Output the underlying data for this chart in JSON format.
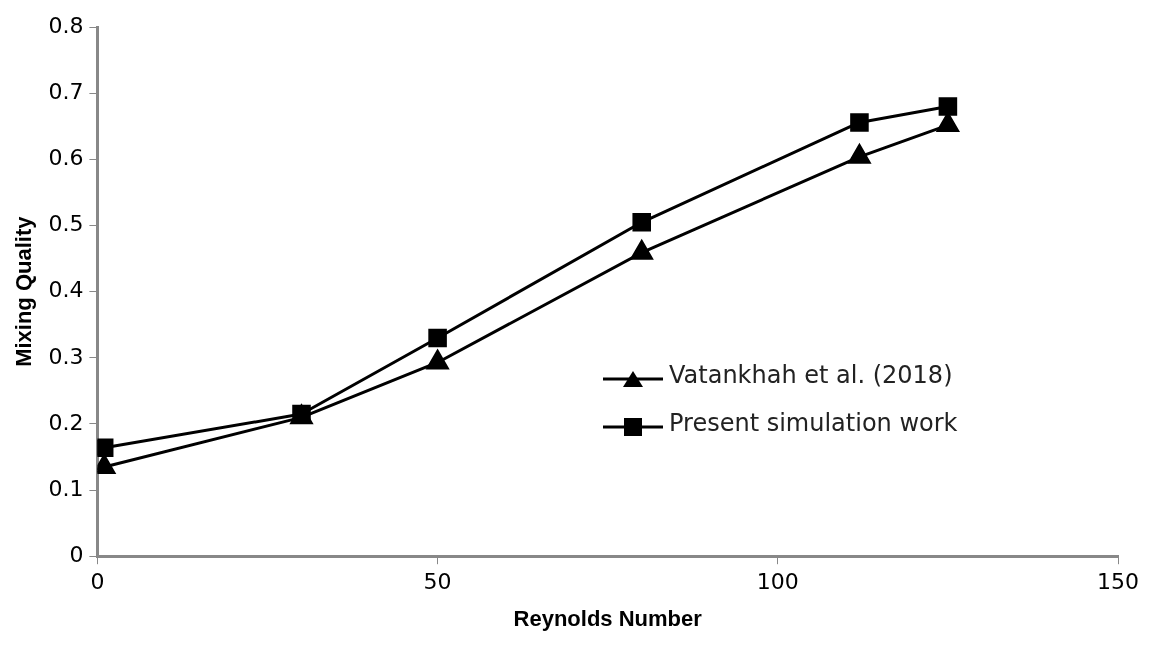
{
  "chart_data": {
    "type": "line",
    "xlabel": "Reynolds Number",
    "ylabel": "Mixing Quality",
    "xlim": [
      0,
      150
    ],
    "xticks": [
      0,
      50,
      100,
      150
    ],
    "ylim": [
      0,
      0.8
    ],
    "yticks": [
      0,
      0.1,
      0.2,
      0.3,
      0.4,
      0.5,
      0.6,
      0.7,
      0.8
    ],
    "grid": false,
    "legend": "right",
    "line_style": "solid",
    "series": [
      {
        "name": "Vatankhah et al. (2018)",
        "color": "#000000",
        "marker": "triangle",
        "x": [
          1,
          30,
          50,
          80,
          112,
          125
        ],
        "values": [
          0.135,
          0.21,
          0.293,
          0.459,
          0.604,
          0.652
        ]
      },
      {
        "name": "Present  simulation work",
        "color": "#000000",
        "marker": "square",
        "x": [
          1,
          30,
          50,
          80,
          112,
          125
        ],
        "values": [
          0.164,
          0.215,
          0.33,
          0.505,
          0.656,
          0.68
        ]
      }
    ]
  }
}
